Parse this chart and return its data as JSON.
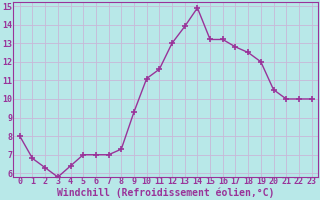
{
  "x": [
    0,
    1,
    2,
    3,
    4,
    5,
    6,
    7,
    8,
    9,
    10,
    11,
    12,
    13,
    14,
    15,
    16,
    17,
    18,
    19,
    20,
    21,
    22,
    23
  ],
  "y": [
    8.0,
    6.8,
    6.3,
    5.8,
    6.4,
    7.0,
    7.0,
    7.0,
    7.3,
    9.3,
    11.1,
    11.6,
    13.0,
    13.9,
    14.9,
    13.2,
    13.2,
    12.8,
    12.5,
    12.0,
    10.5,
    10.0,
    10.0,
    10.0
  ],
  "ylim": [
    6,
    15
  ],
  "xlim": [
    -0.5,
    23.5
  ],
  "yticks": [
    6,
    7,
    8,
    9,
    10,
    11,
    12,
    13,
    14,
    15
  ],
  "xticks": [
    0,
    1,
    2,
    3,
    4,
    5,
    6,
    7,
    8,
    9,
    10,
    11,
    12,
    13,
    14,
    15,
    16,
    17,
    18,
    19,
    20,
    21,
    22,
    23
  ],
  "xlabel": "Windchill (Refroidissement éolien,°C)",
  "line_color": "#993399",
  "marker": "+",
  "marker_size": 5,
  "marker_lw": 1.2,
  "line_width": 1.0,
  "bg_color": "#b8e8e8",
  "grid_color": "#c8b8d8",
  "text_color": "#993399",
  "tick_fontsize": 6,
  "xlabel_fontsize": 7,
  "spine_color": "#993399"
}
